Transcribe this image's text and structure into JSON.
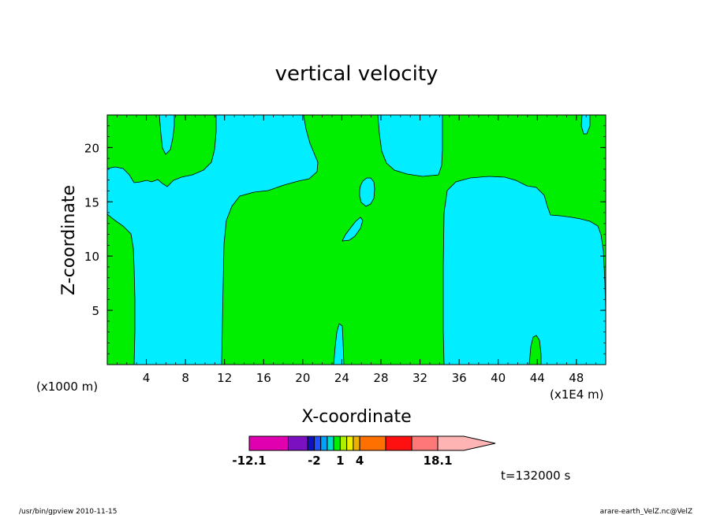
{
  "chart_data": {
    "type": "heatmap",
    "title": "vertical velocity",
    "xlabel": "X-coordinate",
    "ylabel": "Z-coordinate",
    "x_unit_left": "(x1000 m)",
    "x_unit_right": "(x1E4 m)",
    "xlim": [
      0,
      51
    ],
    "ylim": [
      0,
      23
    ],
    "x_ticks": [
      "4",
      "8",
      "12",
      "16",
      "20",
      "24",
      "28",
      "32",
      "36",
      "40",
      "44",
      "48"
    ],
    "x_tick_values": [
      4,
      8,
      12,
      16,
      20,
      24,
      28,
      32,
      36,
      40,
      44,
      48
    ],
    "y_ticks": [
      "5",
      "10",
      "15",
      "20"
    ],
    "y_tick_values": [
      5,
      10,
      15,
      20
    ],
    "field_colors": {
      "positive": "#00ee00",
      "negative": "#00eeff"
    },
    "colorbar": {
      "colors": [
        "#e000b0",
        "#7a10c0",
        "#1010c0",
        "#2050ff",
        "#00a0ff",
        "#00ddcc",
        "#00ee00",
        "#b0ee00",
        "#eeee00",
        "#eeb000",
        "#ff7000",
        "#ff1010",
        "#ff7878",
        "#ffb4b4"
      ],
      "widths": [
        3,
        1.5,
        0.5,
        0.5,
        0.5,
        0.5,
        0.5,
        0.5,
        0.5,
        0.5,
        2,
        2,
        2,
        2
      ],
      "labels": [
        "-12.1",
        "-2",
        "1",
        "4",
        "18.1"
      ],
      "label_index": [
        0,
        3,
        7,
        10,
        13
      ]
    },
    "time_label": "t=132000 s"
  },
  "footer": {
    "left": "/usr/bin/gpview  2010-11-15",
    "right": "arare-earth_VelZ.nc@VelZ"
  }
}
